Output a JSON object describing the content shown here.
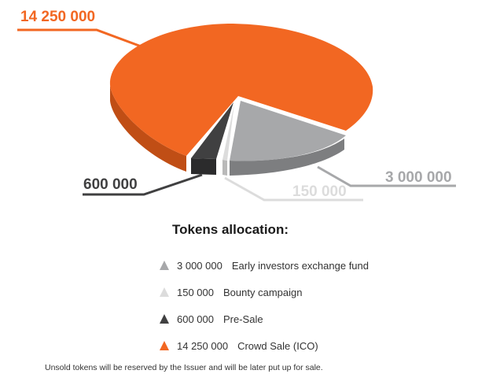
{
  "chart_data": {
    "type": "pie",
    "title": "Tokens allocation:",
    "slices": [
      {
        "label": "Early investors exchange fund",
        "value": 3000000,
        "value_label": "3 000 000",
        "color": "#a7a8aa",
        "marker": "triangle-icon"
      },
      {
        "label": "Bounty campaign",
        "value": 150000,
        "value_label": "150 000",
        "color": "#dcdcdc",
        "marker": "triangle-icon"
      },
      {
        "label": "Pre-Sale",
        "value": 600000,
        "value_label": "600 000",
        "color": "#404041",
        "marker": "triangle-icon"
      },
      {
        "label": "Crowd Sale (ICO)",
        "value": 14250000,
        "value_label": "14 250 000",
        "color": "#f26722",
        "marker": "triangle-icon"
      }
    ],
    "legend_position": "bottom"
  },
  "footnote": "Unsold tokens will be reserved by the Issuer and will be later put up for sale.",
  "colors": {
    "orange_dark": "#c04e15",
    "gray_dark": "#7d7e80",
    "bounty_dark": "#b9b9b9",
    "presale_dark": "#2b2b2c"
  }
}
